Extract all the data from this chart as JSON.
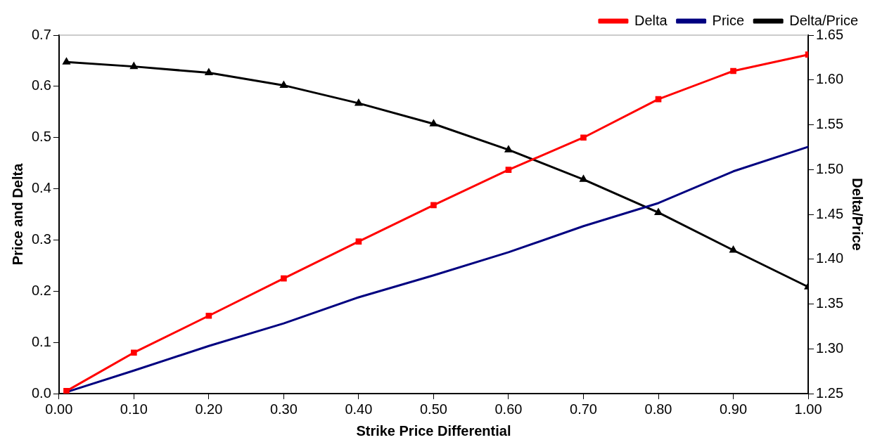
{
  "chart_data": {
    "type": "line",
    "xlabel": "Strike Price Differential",
    "ylabel": "Price and Delta",
    "y2label": "Delta/Price",
    "x": [
      0.01,
      0.1,
      0.2,
      0.3,
      0.4,
      0.5,
      0.6,
      0.7,
      0.8,
      0.9,
      1.0
    ],
    "series": [
      {
        "name": "Delta",
        "color": "#ff0000",
        "marker": "square",
        "values": [
          0.005,
          0.08,
          0.152,
          0.225,
          0.297,
          0.368,
          0.437,
          0.5,
          0.575,
          0.63,
          0.662
        ]
      },
      {
        "name": "Price",
        "color": "#000080",
        "marker": "none",
        "values": [
          0.003,
          0.045,
          0.093,
          0.137,
          0.188,
          0.231,
          0.276,
          0.327,
          0.372,
          0.434,
          0.482
        ]
      },
      {
        "name": "Delta/Price",
        "color": "#000000",
        "marker": "triangle",
        "axis": "y2",
        "values": [
          1.62,
          1.615,
          1.608,
          1.594,
          1.574,
          1.551,
          1.522,
          1.489,
          1.452,
          1.41,
          1.369
        ]
      }
    ],
    "xlim": [
      0,
      1.0
    ],
    "xticks": [
      {
        "value": 0,
        "label": "0.00"
      },
      {
        "value": 0.1,
        "label": "0.10"
      },
      {
        "value": 0.2,
        "label": "0.20"
      },
      {
        "value": 0.3,
        "label": "0.30"
      },
      {
        "value": 0.4,
        "label": "0.40"
      },
      {
        "value": 0.5,
        "label": "0.50"
      },
      {
        "value": 0.6,
        "label": "0.60"
      },
      {
        "value": 0.7,
        "label": "0.70"
      },
      {
        "value": 0.8,
        "label": "0.80"
      },
      {
        "value": 0.9,
        "label": "0.90"
      },
      {
        "value": 1.0,
        "label": "1.00"
      }
    ],
    "ylim": [
      0,
      0.7
    ],
    "yticks": [
      {
        "value": 0,
        "label": "0.0"
      },
      0.1,
      0.2,
      0.3,
      0.4,
      0.5,
      0.6,
      0.7
    ],
    "y2lim": [
      1.25,
      1.65
    ],
    "y2ticks": [
      1.25,
      {
        "value": 1.3,
        "label": "1.30"
      },
      1.35,
      {
        "value": 1.4,
        "label": "1.40"
      },
      1.45,
      {
        "value": 1.5,
        "label": "1.50"
      },
      1.55,
      {
        "value": 1.6,
        "label": "1.60"
      },
      1.65
    ],
    "grid": false,
    "legend": "top right"
  }
}
